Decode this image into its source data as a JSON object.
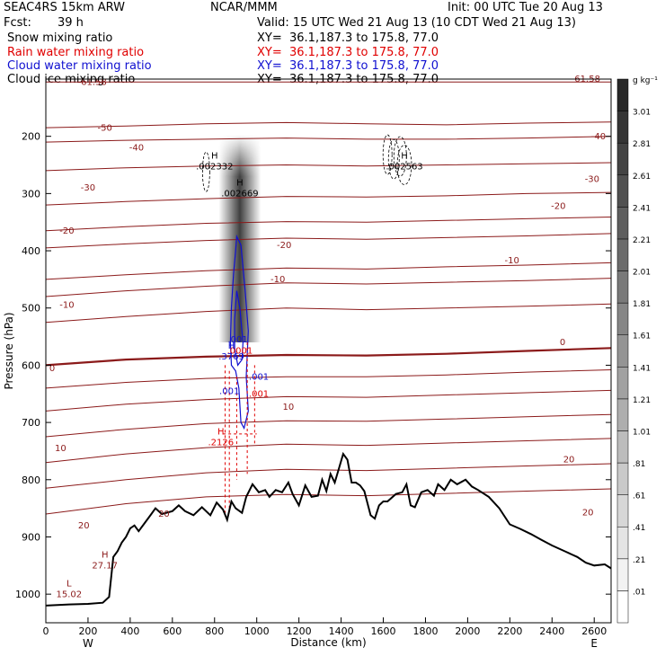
{
  "header": {
    "model": "SEAC4RS 15km ARW",
    "org": "NCAR/MMM",
    "init": "Init: 00 UTC Tue 20 Aug 13",
    "fcst_label": "Fcst:",
    "fcst_value": "39 h",
    "valid": "Valid: 15 UTC Wed 21 Aug 13 (10 CDT Wed 21 Aug 13)",
    "fields": [
      {
        "name": "Snow mixing ratio",
        "xy": "XY=  36.1,187.3 to 175.8, 77.0",
        "color": "#000000"
      },
      {
        "name": "Rain water mixing ratio",
        "xy": "XY=  36.1,187.3 to 175.8, 77.0",
        "color": "#e00000"
      },
      {
        "name": "Cloud water mixing ratio",
        "xy": "XY=  36.1,187.3 to 175.8, 77.0",
        "color": "#1010d0"
      },
      {
        "name": "Cloud ice mixing ratio",
        "xy": "XY=  36.1,187.3 to 175.8, 77.0",
        "color": "#000000"
      }
    ]
  },
  "colors": {
    "temperature": "#8b1a1a",
    "rain": "#e00000",
    "cloud": "#1010d0",
    "terrain": "#000000"
  },
  "chart_data": {
    "type": "cross-section",
    "xlabel": "Distance (km)",
    "ylabel": "Pressure (hPa)",
    "xlim": [
      0,
      2680
    ],
    "ylim": [
      100,
      1050
    ],
    "x_ticks": [
      0,
      200,
      400,
      600,
      800,
      1000,
      1200,
      1400,
      1600,
      1800,
      2000,
      2200,
      2400,
      2600
    ],
    "y_ticks": [
      200,
      300,
      400,
      500,
      600,
      700,
      800,
      900,
      1000
    ],
    "x_ends": {
      "left": "W",
      "right": "E"
    },
    "colorbar": {
      "unit": "g kg⁻¹",
      "levels": [
        ".01",
        ".21",
        ".41",
        ".61",
        ".81",
        "1.01",
        "1.21",
        "1.41",
        "1.61",
        "1.81",
        "2.01",
        "2.21",
        "2.41",
        "2.61",
        "2.81",
        "3.01"
      ]
    },
    "terrain": [
      [
        0,
        1020
      ],
      [
        110,
        1018
      ],
      [
        200,
        1017
      ],
      [
        270,
        1015
      ],
      [
        300,
        1005
      ],
      [
        320,
        935
      ],
      [
        340,
        925
      ],
      [
        360,
        910
      ],
      [
        380,
        900
      ],
      [
        400,
        885
      ],
      [
        420,
        880
      ],
      [
        440,
        890
      ],
      [
        470,
        875
      ],
      [
        500,
        860
      ],
      [
        520,
        850
      ],
      [
        550,
        860
      ],
      [
        600,
        855
      ],
      [
        630,
        845
      ],
      [
        660,
        855
      ],
      [
        700,
        862
      ],
      [
        740,
        848
      ],
      [
        780,
        862
      ],
      [
        810,
        840
      ],
      [
        840,
        852
      ],
      [
        860,
        870
      ],
      [
        880,
        838
      ],
      [
        900,
        850
      ],
      [
        930,
        858
      ],
      [
        950,
        830
      ],
      [
        980,
        808
      ],
      [
        1010,
        822
      ],
      [
        1040,
        818
      ],
      [
        1060,
        830
      ],
      [
        1090,
        818
      ],
      [
        1120,
        822
      ],
      [
        1150,
        805
      ],
      [
        1170,
        825
      ],
      [
        1200,
        845
      ],
      [
        1230,
        810
      ],
      [
        1260,
        830
      ],
      [
        1290,
        828
      ],
      [
        1310,
        800
      ],
      [
        1330,
        820
      ],
      [
        1350,
        790
      ],
      [
        1370,
        805
      ],
      [
        1390,
        780
      ],
      [
        1410,
        755
      ],
      [
        1430,
        765
      ],
      [
        1450,
        805
      ],
      [
        1470,
        805
      ],
      [
        1490,
        810
      ],
      [
        1510,
        820
      ],
      [
        1540,
        862
      ],
      [
        1560,
        868
      ],
      [
        1580,
        845
      ],
      [
        1600,
        838
      ],
      [
        1620,
        838
      ],
      [
        1660,
        825
      ],
      [
        1690,
        822
      ],
      [
        1710,
        808
      ],
      [
        1730,
        845
      ],
      [
        1750,
        848
      ],
      [
        1780,
        822
      ],
      [
        1810,
        818
      ],
      [
        1840,
        828
      ],
      [
        1860,
        808
      ],
      [
        1890,
        818
      ],
      [
        1920,
        800
      ],
      [
        1950,
        808
      ],
      [
        1990,
        800
      ],
      [
        2020,
        812
      ],
      [
        2050,
        818
      ],
      [
        2100,
        830
      ],
      [
        2150,
        850
      ],
      [
        2200,
        878
      ],
      [
        2250,
        886
      ],
      [
        2300,
        895
      ],
      [
        2350,
        905
      ],
      [
        2400,
        915
      ],
      [
        2460,
        925
      ],
      [
        2520,
        935
      ],
      [
        2560,
        945
      ],
      [
        2600,
        950
      ],
      [
        2650,
        948
      ],
      [
        2680,
        955
      ]
    ],
    "isotherms": [
      {
        "label": "-61.58",
        "y": [
          105,
          105,
          105,
          105,
          105,
          105,
          105,
          105
        ]
      },
      {
        "label": "-50",
        "y": [
          185,
          182,
          178,
          176,
          178,
          180,
          177,
          175
        ]
      },
      {
        "label": "-40",
        "y": [
          210,
          207,
          205,
          203,
          205,
          205,
          203,
          200
        ]
      },
      {
        "label": "-30",
        "y": [
          260,
          255,
          252,
          250,
          252,
          250,
          248,
          246
        ]
      },
      {
        "label": "-20",
        "y": [
          320,
          314,
          309,
          305,
          306,
          304,
          300,
          298
        ]
      },
      {
        "label": "-10",
        "y": [
          365,
          358,
          352,
          349,
          350,
          347,
          344,
          341
        ]
      },
      {
        "label": "-20",
        "y": [
          395,
          388,
          382,
          378,
          380,
          377,
          374,
          370
        ]
      },
      {
        "label": "-10",
        "y": [
          450,
          442,
          435,
          430,
          432,
          428,
          425,
          421
        ]
      },
      {
        "label": "-10",
        "y": [
          480,
          470,
          462,
          456,
          458,
          455,
          452,
          448
        ]
      },
      {
        "label": "-10",
        "y": [
          525,
          515,
          506,
          500,
          503,
          500,
          497,
          493
        ]
      },
      {
        "label": "0",
        "y": [
          600,
          590,
          585,
          582,
          583,
          580,
          575,
          570
        ]
      },
      {
        "label": "0",
        "y": [
          640,
          630,
          623,
          620,
          620,
          617,
          612,
          608
        ]
      },
      {
        "label": "10",
        "y": [
          680,
          668,
          660,
          655,
          656,
          652,
          648,
          644
        ]
      },
      {
        "label": "10",
        "y": [
          725,
          712,
          702,
          697,
          698,
          694,
          690,
          686
        ]
      },
      {
        "label": "10",
        "y": [
          770,
          755,
          744,
          738,
          740,
          736,
          732,
          728
        ]
      },
      {
        "label": "20",
        "y": [
          815,
          800,
          788,
          782,
          784,
          780,
          776,
          772
        ]
      },
      {
        "label": "20",
        "y": [
          860,
          842,
          830,
          826,
          828,
          824,
          820,
          816
        ]
      }
    ],
    "extrema": [
      {
        "type": "H",
        "value": ".002332",
        "x": 800,
        "p": 258
      },
      {
        "type": "H",
        "value": ".002669",
        "x": 920,
        "p": 305
      },
      {
        "type": "H",
        "value": ".002563",
        "x": 1700,
        "p": 258
      },
      {
        "type": "H",
        "value": ".3769",
        "x": 880,
        "p": 590
      },
      {
        "type": "H",
        "value": ".2126",
        "x": 830,
        "p": 740
      },
      {
        "type": "H",
        "value": "27.17",
        "x": 280,
        "p": 955
      },
      {
        "type": "L",
        "value": "15.02",
        "x": 110,
        "p": 1005
      }
    ],
    "contour_labels": [
      {
        "text": "-61.58",
        "x": 220,
        "p": 110,
        "series": "temperature"
      },
      {
        "text": "-61.58",
        "x": 2560,
        "p": 105,
        "series": "temperature"
      },
      {
        "text": "-50",
        "x": 280,
        "p": 190,
        "series": "temperature"
      },
      {
        "text": "-40",
        "x": 430,
        "p": 225,
        "series": "temperature"
      },
      {
        "text": "-40",
        "x": 2620,
        "p": 205,
        "series": "temperature"
      },
      {
        "text": "-30",
        "x": 200,
        "p": 295,
        "series": "temperature"
      },
      {
        "text": "-30",
        "x": 2590,
        "p": 280,
        "series": "temperature"
      },
      {
        "text": "-20",
        "x": 100,
        "p": 370,
        "series": "temperature"
      },
      {
        "text": "-20",
        "x": 1130,
        "p": 395,
        "series": "temperature"
      },
      {
        "text": "-20",
        "x": 2430,
        "p": 327,
        "series": "temperature"
      },
      {
        "text": "-10",
        "x": 100,
        "p": 500,
        "series": "temperature"
      },
      {
        "text": "-10",
        "x": 1100,
        "p": 455,
        "series": "temperature"
      },
      {
        "text": "-10",
        "x": 2210,
        "p": 422,
        "series": "temperature"
      },
      {
        "text": "0",
        "x": 30,
        "p": 610,
        "series": "temperature"
      },
      {
        "text": "0",
        "x": 2450,
        "p": 565,
        "series": "temperature"
      },
      {
        "text": "10",
        "x": 70,
        "p": 750,
        "series": "temperature"
      },
      {
        "text": "10",
        "x": 1150,
        "p": 678,
        "series": "temperature"
      },
      {
        "text": "20",
        "x": 180,
        "p": 885,
        "series": "temperature"
      },
      {
        "text": "20",
        "x": 560,
        "p": 865,
        "series": "temperature"
      },
      {
        "text": "20",
        "x": 2480,
        "p": 770,
        "series": "temperature"
      },
      {
        "text": "20",
        "x": 2570,
        "p": 862,
        "series": "temperature"
      },
      {
        "text": ".001",
        "x": 910,
        "p": 560,
        "series": "cloud"
      },
      {
        "text": ".001",
        "x": 1010,
        "p": 625,
        "series": "cloud"
      },
      {
        "text": ".001",
        "x": 870,
        "p": 650,
        "series": "cloud"
      },
      {
        "text": ".001",
        "x": 1010,
        "p": 655,
        "series": "rain"
      },
      {
        "text": ".0001",
        "x": 920,
        "p": 580,
        "series": "rain"
      }
    ]
  }
}
